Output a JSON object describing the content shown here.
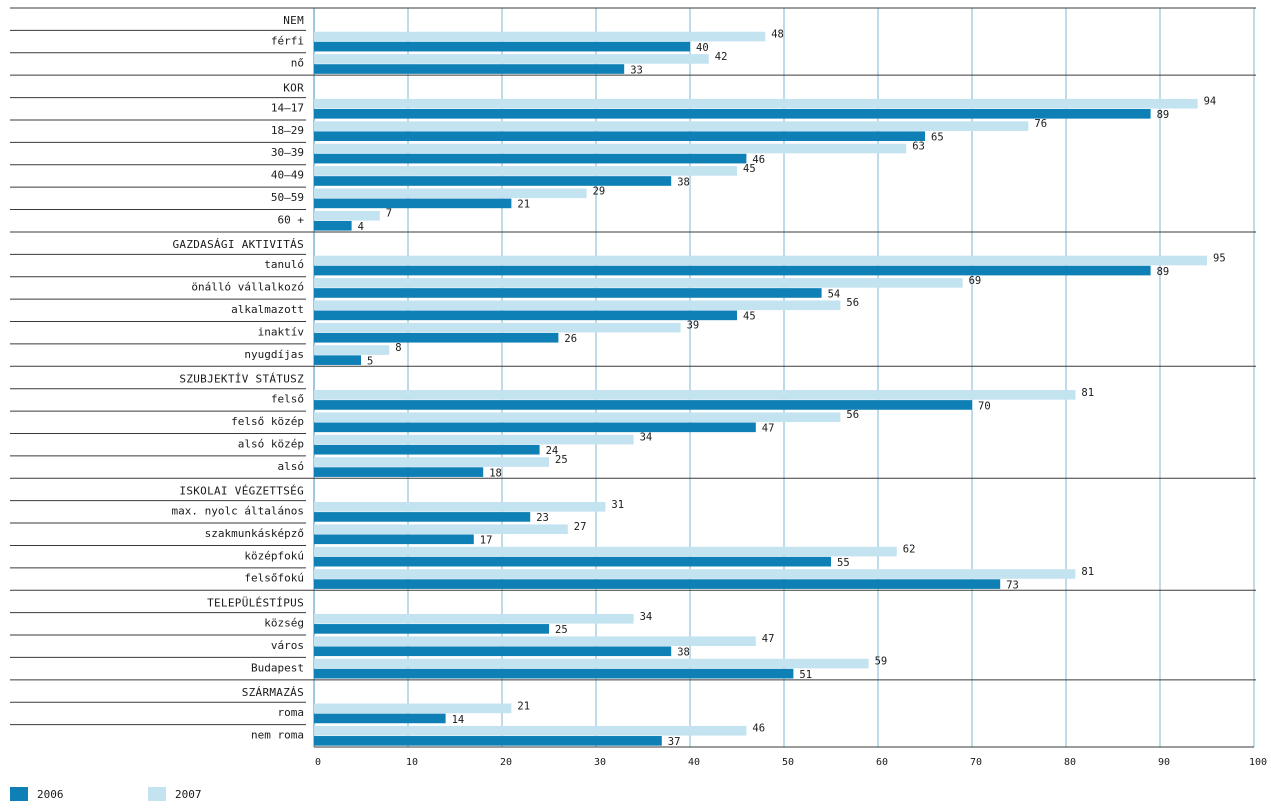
{
  "colors": {
    "s2006": "#0f80b5",
    "s2007": "#c3e3f1",
    "grid": "#7fb6d3",
    "line": "#3a3a3a"
  },
  "legend": [
    {
      "label": "2006",
      "color": "#0f80b5"
    },
    {
      "label": "2007",
      "color": "#c3e3f1"
    }
  ],
  "chart_data": {
    "type": "bar",
    "orientation": "horizontal",
    "title": "",
    "xlabel": "",
    "ylabel": "",
    "xlim": [
      0,
      100
    ],
    "x_ticks": [
      "0",
      "10",
      "20",
      "30",
      "40",
      "50",
      "60",
      "70",
      "80",
      "90",
      "100"
    ],
    "grid": true,
    "legend_position": "bottom-left",
    "series_names": [
      "2007",
      "2006"
    ],
    "sections": [
      {
        "label": "NEM",
        "items": [
          {
            "label": "férfi",
            "v2007": 48,
            "v2006": 40
          },
          {
            "label": "nő",
            "v2007": 42,
            "v2006": 33
          }
        ]
      },
      {
        "label": "KOR",
        "items": [
          {
            "label": "14–17",
            "v2007": 94,
            "v2006": 89
          },
          {
            "label": "18–29",
            "v2007": 76,
            "v2006": 65
          },
          {
            "label": "30–39",
            "v2007": 63,
            "v2006": 46
          },
          {
            "label": "40–49",
            "v2007": 45,
            "v2006": 38
          },
          {
            "label": "50–59",
            "v2007": 29,
            "v2006": 21
          },
          {
            "label": "60 +",
            "v2007": 7,
            "v2006": 4
          }
        ]
      },
      {
        "label": "GAZDASÁGI AKTIVITÁS",
        "items": [
          {
            "label": "tanuló",
            "v2007": 95,
            "v2006": 89
          },
          {
            "label": "önálló vállalkozó",
            "v2007": 69,
            "v2006": 54
          },
          {
            "label": "alkalmazott",
            "v2007": 56,
            "v2006": 45
          },
          {
            "label": "inaktív",
            "v2007": 39,
            "v2006": 26
          },
          {
            "label": "nyugdíjas",
            "v2007": 8,
            "v2006": 5
          }
        ]
      },
      {
        "label": "SZUBJEKTÍV STÁTUSZ",
        "items": [
          {
            "label": "felső",
            "v2007": 81,
            "v2006": 70
          },
          {
            "label": "felső közép",
            "v2007": 56,
            "v2006": 47
          },
          {
            "label": "alsó közép",
            "v2007": 34,
            "v2006": 24
          },
          {
            "label": "alsó",
            "v2007": 25,
            "v2006": 18
          }
        ]
      },
      {
        "label": "ISKOLAI VÉGZETTSÉG",
        "items": [
          {
            "label": "max. nyolc általános",
            "v2007": 31,
            "v2006": 23
          },
          {
            "label": "szakmunkásképző",
            "v2007": 27,
            "v2006": 17
          },
          {
            "label": "középfokú",
            "v2007": 62,
            "v2006": 55
          },
          {
            "label": "felsőfokú",
            "v2007": 81,
            "v2006": 73
          }
        ]
      },
      {
        "label": "TELEPÜLÉSTÍPUS",
        "items": [
          {
            "label": "község",
            "v2007": 34,
            "v2006": 25
          },
          {
            "label": "város",
            "v2007": 47,
            "v2006": 38
          },
          {
            "label": "Budapest",
            "v2007": 59,
            "v2006": 51
          }
        ]
      },
      {
        "label": "SZÁRMAZÁS",
        "items": [
          {
            "label": "roma",
            "v2007": 21,
            "v2006": 14
          },
          {
            "label": "nem roma",
            "v2007": 46,
            "v2006": 37
          }
        ]
      }
    ]
  }
}
